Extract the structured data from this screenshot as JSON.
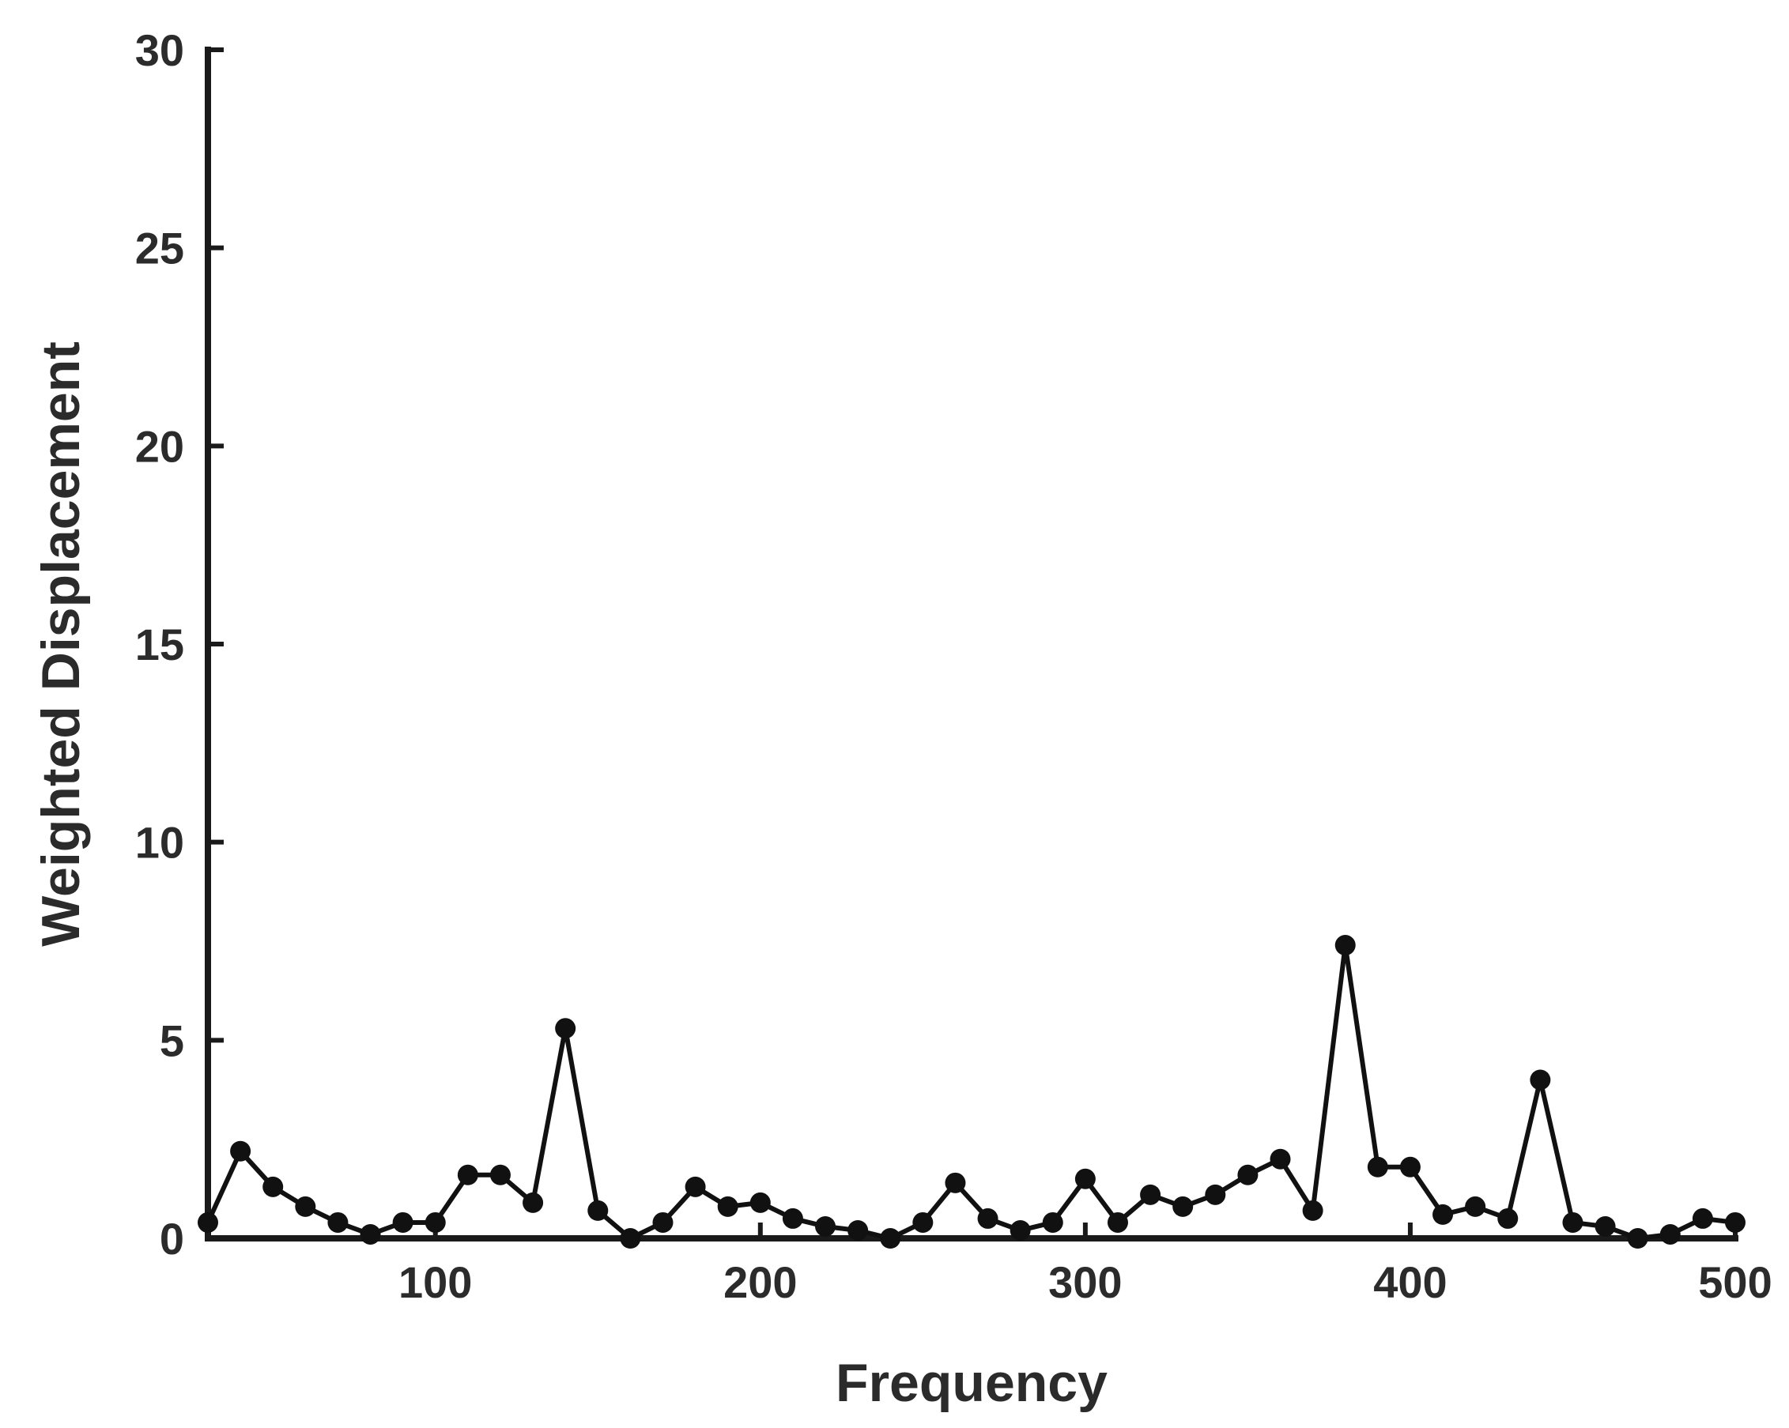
{
  "chart_data": {
    "type": "line",
    "title": "",
    "xlabel": "Frequency",
    "ylabel": "Weighted Displacement",
    "xlim": [
      30,
      500
    ],
    "ylim": [
      0,
      30
    ],
    "xticks": [
      100,
      200,
      300,
      400,
      500
    ],
    "yticks": [
      0,
      5,
      10,
      15,
      20,
      25,
      30
    ],
    "grid": false,
    "marker": "circle",
    "color": "#111111",
    "series": [
      {
        "x": [
          30,
          40,
          50,
          60,
          70,
          80,
          90,
          100,
          110,
          120,
          130,
          140,
          150,
          160,
          170,
          180,
          190,
          200,
          210,
          220,
          230,
          240,
          250,
          260,
          270,
          280,
          290,
          300,
          310,
          320,
          330,
          340,
          350,
          360,
          370,
          380,
          390,
          400,
          410,
          420,
          430,
          440,
          450,
          460,
          470,
          480,
          490,
          500
        ],
        "y": [
          0.4,
          2.2,
          1.3,
          0.8,
          0.4,
          0.1,
          0.4,
          0.4,
          1.6,
          1.6,
          0.9,
          5.3,
          0.7,
          0.0,
          0.4,
          1.3,
          0.8,
          0.9,
          0.5,
          0.3,
          0.2,
          0.0,
          0.4,
          1.4,
          0.5,
          0.2,
          0.4,
          1.5,
          0.4,
          1.1,
          0.8,
          1.1,
          1.6,
          2.0,
          0.7,
          7.4,
          1.8,
          1.8,
          0.6,
          0.8,
          0.5,
          4.0,
          0.4,
          0.3,
          0.0,
          0.1,
          0.5,
          0.4
        ]
      }
    ]
  }
}
